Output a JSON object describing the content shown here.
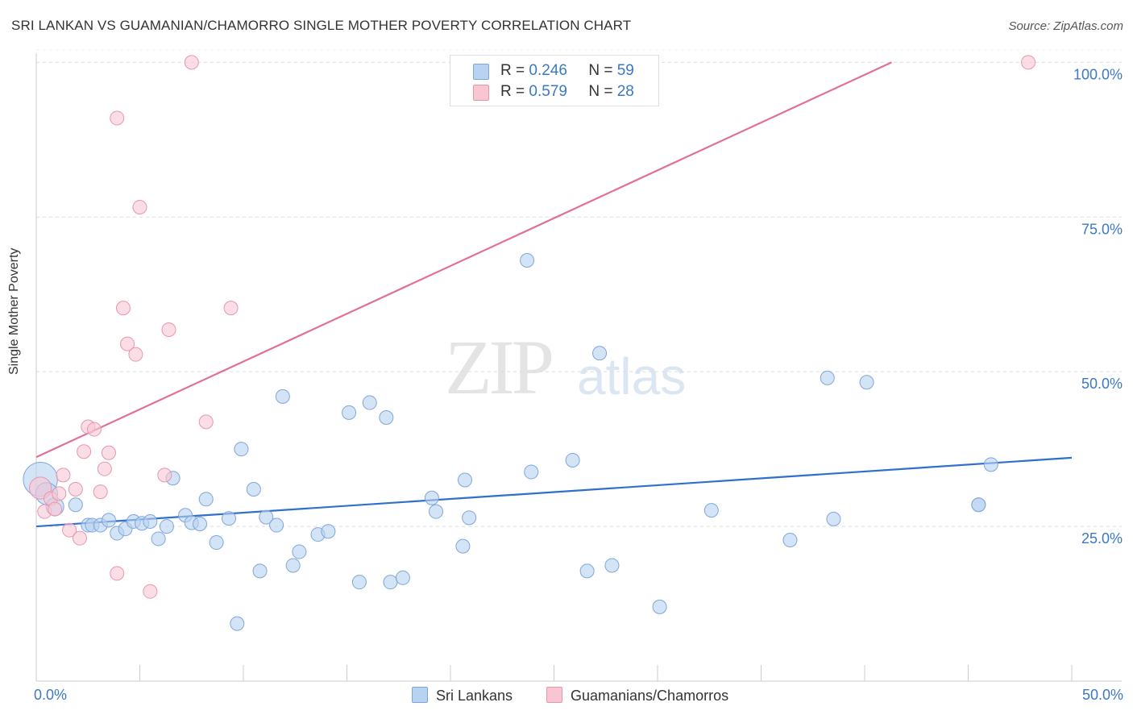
{
  "title": "SRI LANKAN VS GUAMANIAN/CHAMORRO SINGLE MOTHER POVERTY CORRELATION CHART",
  "source": "Source: ZipAtlas.com",
  "watermark": {
    "zip": "ZIP",
    "atlas": "atlas"
  },
  "legend": {
    "r_label": "R =",
    "n_label": "N =",
    "rows": [
      {
        "r": "0.246",
        "n": "59",
        "color": "#b8d2f2",
        "border": "#7fa6d8"
      },
      {
        "r": "0.579",
        "n": "28",
        "color": "#f8c6d3",
        "border": "#e896ae"
      }
    ]
  },
  "chart_data": {
    "type": "scatter",
    "title": "SRI LANKAN VS GUAMANIAN/CHAMORRO SINGLE MOTHER POVERTY CORRELATION CHART",
    "xlabel": "",
    "ylabel": "Single Mother Poverty",
    "xlim": [
      0,
      50
    ],
    "ylim": [
      0,
      102
    ],
    "x_tick_labels": [
      "0.0%",
      "50.0%"
    ],
    "y_ticks": [
      {
        "value": 25,
        "label": "25.0%"
      },
      {
        "value": 50,
        "label": "50.0%"
      },
      {
        "value": 75,
        "label": "75.0%"
      },
      {
        "value": 100,
        "label": "100.0%"
      }
    ],
    "series": [
      {
        "name": "Sri Lankans",
        "color": "#b8d2f2",
        "stroke": "#7fa6d8",
        "trend_color": "#2f6fcf",
        "trend": {
          "x0": 0,
          "y0": 25.0,
          "x1": 50,
          "y1": 36.1
        },
        "points": [
          [
            0.2,
            32.6,
            2.5
          ],
          [
            0.5,
            30.3,
            1.6
          ],
          [
            0.9,
            28.2,
            1.3
          ],
          [
            1.9,
            28.5,
            1
          ],
          [
            2.5,
            25.2,
            1
          ],
          [
            2.7,
            25.2,
            1
          ],
          [
            3.1,
            25.2,
            1
          ],
          [
            3.5,
            26.0,
            1
          ],
          [
            3.9,
            23.9,
            1
          ],
          [
            4.3,
            24.6,
            1
          ],
          [
            4.7,
            25.8,
            1
          ],
          [
            5.1,
            25.5,
            1
          ],
          [
            5.5,
            25.8,
            1
          ],
          [
            5.9,
            23.0,
            1
          ],
          [
            6.3,
            25.0,
            1
          ],
          [
            6.6,
            32.8,
            1
          ],
          [
            7.2,
            26.8,
            1
          ],
          [
            7.5,
            25.6,
            1
          ],
          [
            7.9,
            25.4,
            1
          ],
          [
            8.2,
            29.4,
            1
          ],
          [
            8.7,
            22.4,
            1
          ],
          [
            9.3,
            26.3,
            1
          ],
          [
            9.7,
            9.3,
            1
          ],
          [
            9.9,
            37.5,
            1
          ],
          [
            10.5,
            31.0,
            1
          ],
          [
            10.8,
            17.8,
            1
          ],
          [
            11.1,
            26.5,
            1
          ],
          [
            11.6,
            25.2,
            1
          ],
          [
            11.9,
            46.0,
            1
          ],
          [
            12.4,
            18.7,
            1
          ],
          [
            12.7,
            20.9,
            1
          ],
          [
            13.6,
            23.7,
            1
          ],
          [
            14.1,
            24.2,
            1
          ],
          [
            15.1,
            43.4,
            1
          ],
          [
            15.6,
            16.0,
            1
          ],
          [
            16.1,
            45.0,
            1
          ],
          [
            16.9,
            42.6,
            1
          ],
          [
            17.1,
            16.0,
            1
          ],
          [
            17.7,
            16.7,
            1
          ],
          [
            19.1,
            29.6,
            1
          ],
          [
            19.3,
            27.4,
            1
          ],
          [
            20.6,
            21.8,
            1
          ],
          [
            20.9,
            26.4,
            1
          ],
          [
            20.7,
            32.5,
            1
          ],
          [
            23.7,
            68.0,
            1
          ],
          [
            23.9,
            33.8,
            1
          ],
          [
            25.9,
            35.7,
            1
          ],
          [
            26.6,
            17.8,
            1
          ],
          [
            27.2,
            53.0,
            1
          ],
          [
            27.8,
            18.7,
            1
          ],
          [
            30.1,
            12.0,
            1
          ],
          [
            32.6,
            27.6,
            1
          ],
          [
            36.4,
            22.8,
            1
          ],
          [
            38.2,
            49.0,
            1
          ],
          [
            38.5,
            26.2,
            1
          ],
          [
            40.1,
            48.3,
            1
          ],
          [
            45.5,
            28.5,
            1
          ],
          [
            45.5,
            28.5,
            1
          ],
          [
            46.1,
            35.0,
            1
          ]
        ]
      },
      {
        "name": "Guamanians/Chamorros",
        "color": "#f8c6d3",
        "stroke": "#e896ae",
        "trend_color": "#e0709a",
        "trend": {
          "x0": 0,
          "y0": 36.2,
          "x1": 41.3,
          "y1": 100.0
        },
        "points": [
          [
            0.2,
            31.2,
            1.6
          ],
          [
            0.4,
            27.4,
            1
          ],
          [
            0.7,
            29.5,
            1
          ],
          [
            0.9,
            27.8,
            1
          ],
          [
            1.1,
            30.3,
            1
          ],
          [
            1.3,
            33.3,
            1
          ],
          [
            1.6,
            24.4,
            1
          ],
          [
            1.9,
            31.0,
            1
          ],
          [
            2.1,
            23.1,
            1
          ],
          [
            2.3,
            37.1,
            1
          ],
          [
            2.5,
            41.1,
            1
          ],
          [
            2.8,
            40.7,
            1
          ],
          [
            3.1,
            30.6,
            1
          ],
          [
            3.3,
            34.3,
            1
          ],
          [
            3.5,
            36.9,
            1
          ],
          [
            3.9,
            91.0,
            1
          ],
          [
            3.9,
            17.4,
            1
          ],
          [
            4.2,
            60.3,
            1
          ],
          [
            4.4,
            54.5,
            1
          ],
          [
            4.8,
            52.8,
            1
          ],
          [
            5.0,
            76.6,
            1
          ],
          [
            5.5,
            14.5,
            1
          ],
          [
            6.2,
            33.3,
            1
          ],
          [
            6.4,
            56.8,
            1
          ],
          [
            7.5,
            100.0,
            1
          ],
          [
            8.2,
            41.9,
            1
          ],
          [
            9.4,
            60.3,
            1
          ],
          [
            47.9,
            100.0,
            1
          ]
        ]
      }
    ]
  },
  "axis_labels": {
    "x_left": "0.0%",
    "x_right": "50.0%",
    "y_title": "Single Mother Poverty"
  },
  "bottom_legend": {
    "items": [
      "Sri Lankans",
      "Guamanians/Chamorros"
    ]
  }
}
